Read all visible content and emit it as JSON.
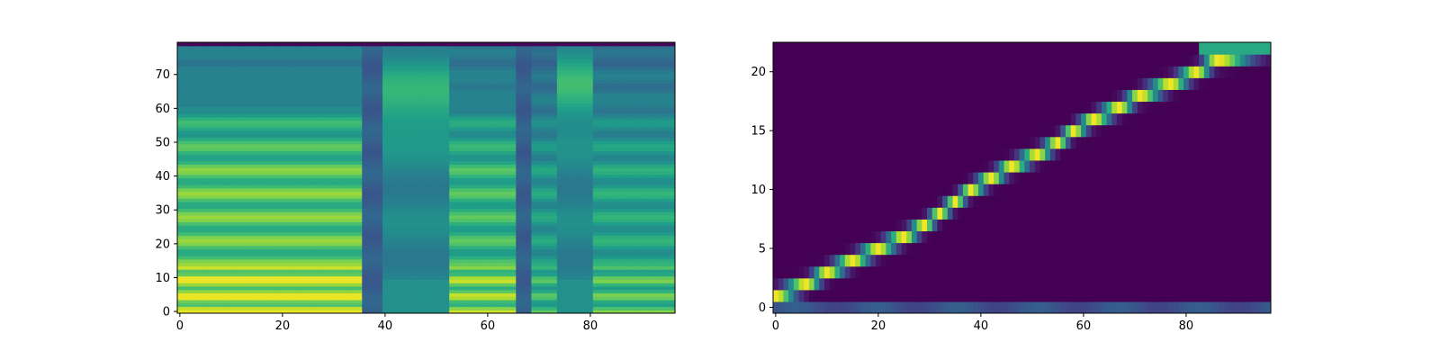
{
  "colors": {
    "viridis": [
      "#440154",
      "#482878",
      "#3e4989",
      "#31688e",
      "#26828e",
      "#1f9e89",
      "#35b779",
      "#6ece58",
      "#b5de2b",
      "#fde725"
    ]
  },
  "chart_data": [
    {
      "type": "heatmap",
      "name": "mel-spectrogram",
      "title": "",
      "xlabel": "",
      "ylabel": "",
      "colormap": "viridis",
      "origin": "lower",
      "xlim": [
        -0.5,
        96.5
      ],
      "ylim": [
        -0.5,
        79.5
      ],
      "x_ticks": [
        0,
        20,
        40,
        60,
        80
      ],
      "y_ticks": [
        0,
        10,
        20,
        30,
        40,
        50,
        60,
        70
      ],
      "grid": false,
      "shape": {
        "cols": 97,
        "rows": 80
      },
      "voiced_segments": [
        {
          "x_range": [
            0,
            36
          ],
          "level": 0.75
        },
        {
          "x_range": [
            53,
            66
          ],
          "level": 0.65
        },
        {
          "x_range": [
            68,
            73
          ],
          "level": 0.5
        },
        {
          "x_range": [
            81,
            96
          ],
          "level": 0.55
        }
      ],
      "fricative_segments": [
        {
          "x_range": [
            40,
            52
          ],
          "level": 0.6,
          "peak_row": 62
        },
        {
          "x_range": [
            73,
            80
          ],
          "level": 0.55,
          "peak_row": 66
        }
      ],
      "silent_segments": [
        {
          "x_range": [
            36,
            39
          ],
          "level": 0.3
        },
        {
          "x_range": [
            66,
            68
          ],
          "level": 0.3
        }
      ]
    },
    {
      "type": "heatmap",
      "name": "attention-alignment",
      "title": "",
      "xlabel": "",
      "ylabel": "",
      "colormap": "viridis",
      "origin": "lower",
      "xlim": [
        -0.5,
        96.5
      ],
      "ylim": [
        -0.5,
        22.5
      ],
      "x_ticks": [
        0,
        20,
        40,
        60,
        80
      ],
      "y_ticks": [
        0,
        5,
        10,
        15,
        20
      ],
      "grid": false,
      "shape": {
        "cols": 97,
        "rows": 23
      },
      "alignment_path": [
        [
          0,
          1
        ],
        [
          6,
          2
        ],
        [
          10,
          3
        ],
        [
          15,
          4
        ],
        [
          20,
          5
        ],
        [
          25,
          6
        ],
        [
          29,
          7
        ],
        [
          32,
          8
        ],
        [
          35,
          9
        ],
        [
          38,
          10
        ],
        [
          42,
          11
        ],
        [
          46,
          12
        ],
        [
          51,
          13
        ],
        [
          55,
          14
        ],
        [
          58,
          15
        ],
        [
          62,
          16
        ],
        [
          67,
          17
        ],
        [
          71,
          18
        ],
        [
          77,
          19
        ],
        [
          82,
          20
        ],
        [
          86,
          21
        ],
        [
          96,
          22
        ]
      ],
      "bottom_row_level": 0.25,
      "top_row_level": 0.3
    }
  ]
}
